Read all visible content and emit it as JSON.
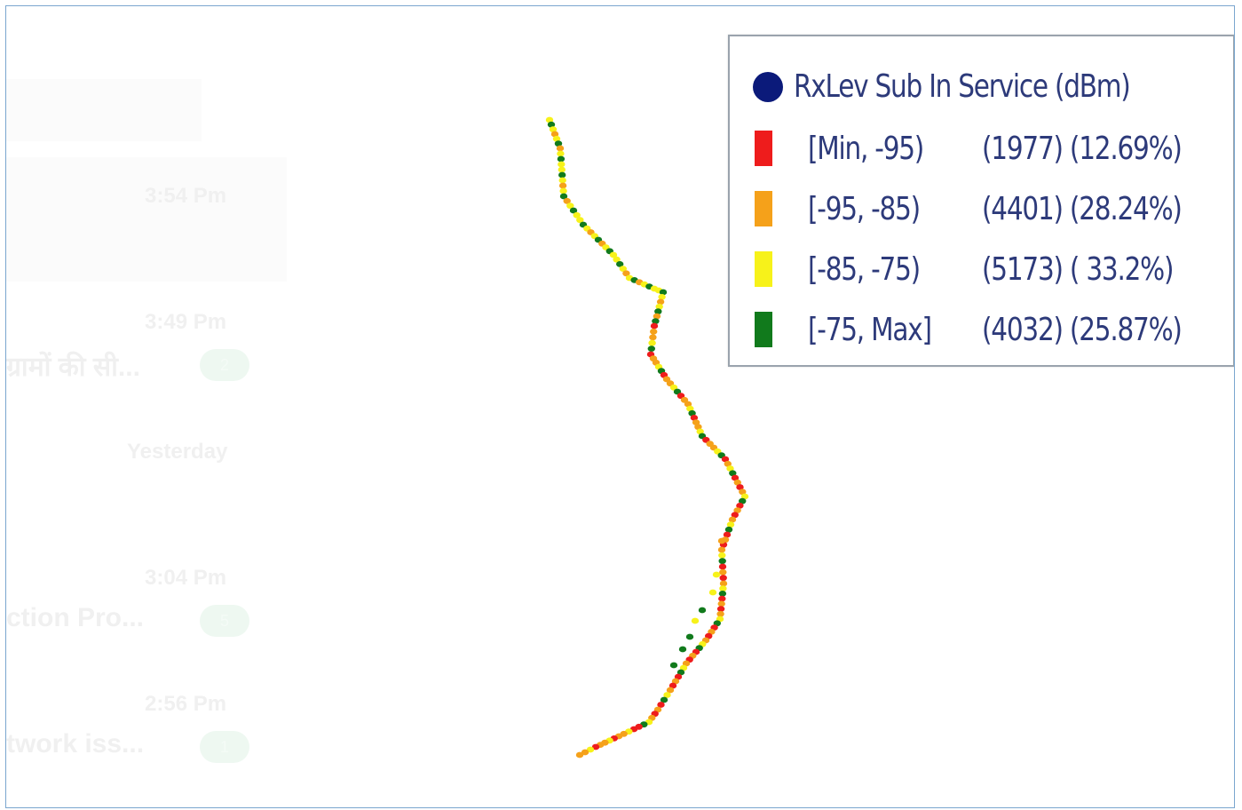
{
  "background_chat": {
    "items": [
      {
        "time": "3:54 Pm",
        "title": "",
        "badge": ""
      },
      {
        "time": "3:49 Pm",
        "title": "ग्रामों की सी...",
        "badge": "2"
      },
      {
        "time": "Yesterday",
        "title": "",
        "badge": ""
      },
      {
        "time": "3:04 Pm",
        "title": "ction Pro...",
        "badge": "5"
      },
      {
        "time": "2:56 Pm",
        "title": "twork iss...",
        "badge": "1"
      }
    ]
  },
  "legend": {
    "title": "RxLev Sub In Service (dBm)",
    "marker_color": "#0b1a7a",
    "rows": [
      {
        "range": "[Min, -95)",
        "count": "(1977) (12.69%)",
        "color": "#ee1c1c"
      },
      {
        "range": "[-95, -85)",
        "count": "(4401) (28.24%)",
        "color": "#f5a11a"
      },
      {
        "range": "[-85, -75)",
        "count": "(5173)  ( 33.2%)",
        "color": "#f7f21a"
      },
      {
        "range": "[-75, Max]",
        "count": "(4032) (25.87%)",
        "color": "#117a1c"
      }
    ]
  },
  "route": {
    "colors": {
      "red": "#ee1c1c",
      "orange": "#f5a11a",
      "yellow": "#f7f21a",
      "green": "#117a1c"
    }
  }
}
